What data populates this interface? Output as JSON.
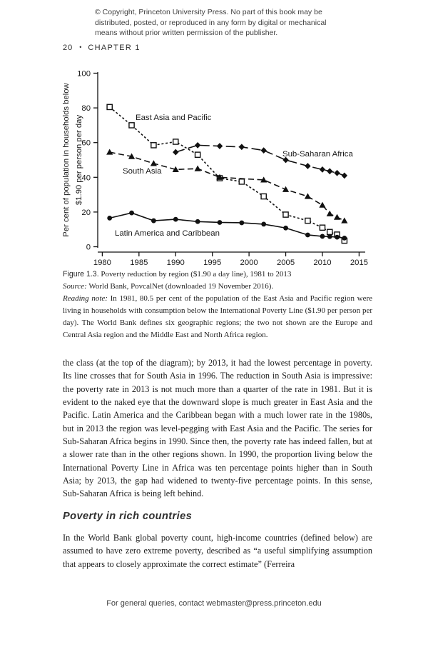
{
  "page": {
    "copyright_lines": [
      "© Copyright, Princeton University Press. No part of this book may be",
      "distributed, posted, or reproduced in any form by digital or mechanical",
      "means without prior written permission of the publisher."
    ],
    "running_head": {
      "page_number": "20",
      "separator": "•",
      "chapter": "CHAPTER 1"
    },
    "footer_text": "For general queries, contact webmaster@press.princeton.edu"
  },
  "figure": {
    "caption_prefix": "Figure 1.3.",
    "caption_title": "Poverty reduction by region ($1.90 a day line), 1981 to 2013",
    "source_prefix": "Source:",
    "source_text": "World Bank, PovcalNet (downloaded 19 November 2016).",
    "reading_note_prefix": "Reading note:",
    "reading_note_text": "In 1981, 80.5 per cent of the population of the East Asia and Pacific region were living in households with consumption below the International Poverty Line ($1.90 per person per day). The World Bank defines six geographic regions; the two not shown are the Europe and Central Asia region and the Middle East and North Africa region."
  },
  "body": {
    "paragraph1": "the class (at the top of the diagram); by 2013, it had the lowest percentage in poverty. Its line crosses that for South Asia in 1996. The reduction in South Asia is impressive: the poverty rate in 2013 is not much more than a quarter of the rate in 1981. But it is evident to the naked eye that the downward slope is much greater in East Asia and the Pacific. Latin America and the Caribbean began with a much lower rate in the 1980s, but in 2013 the region was level-pegging with East Asia and the Pacific. The series for Sub-Saharan Africa begins in 1990. Since then, the poverty rate has indeed fallen, but at a slower rate than in the other regions shown. In 1990, the proportion living below the International Poverty Line in Africa was ten percentage points higher than in South Asia; by 2013, the gap had widened to twenty-five percentage points. In this sense, Sub-Saharan Africa is being left behind.",
    "section_heading": "Poverty in rich countries",
    "paragraph2": "In the World Bank global poverty count, high-income countries (defined below) are assumed to have zero extreme poverty, described as “a useful simplifying assumption that appears to closely approximate the correct estimate” (Ferreira"
  },
  "chart_data": {
    "type": "line",
    "title": "",
    "xlabel": "",
    "ylabel_lines": [
      "Per cent of population in households below",
      "$1.90 per person per day"
    ],
    "xlim": [
      1980,
      2015
    ],
    "ylim": [
      0,
      100
    ],
    "x_ticks": [
      1980,
      1985,
      1990,
      1995,
      2000,
      2005,
      2010,
      2015
    ],
    "y_ticks": [
      0,
      20,
      40,
      60,
      80,
      100
    ],
    "grid": false,
    "legend_position": "inline-labels",
    "line_color": "#111111",
    "series": [
      {
        "name": "East Asia and Pacific",
        "marker": "square-open",
        "dash": "3,2.8",
        "x": [
          1981,
          1984,
          1987,
          1990,
          1993,
          1996,
          1999,
          2002,
          2005,
          2008,
          2010,
          2011,
          2012,
          2013
        ],
        "y": [
          80.5,
          70,
          58.5,
          60.5,
          53,
          39.5,
          37.5,
          29,
          18.5,
          15,
          11,
          8.5,
          7,
          3.5
        ]
      },
      {
        "name": "South Asia",
        "marker": "triangle-filled",
        "dash": "8,4.5",
        "x": [
          1981,
          1984,
          1987,
          1990,
          1993,
          1996,
          2002,
          2005,
          2008,
          2010,
          2011,
          2012,
          2013
        ],
        "y": [
          54.5,
          52,
          48,
          44.5,
          45,
          40,
          38.5,
          33,
          29,
          24,
          19,
          17,
          15
        ]
      },
      {
        "name": "Sub-Saharan Africa",
        "marker": "diamond-filled",
        "dash": "13,5",
        "x": [
          1990,
          1993,
          1996,
          1999,
          2002,
          2005,
          2008,
          2010,
          2011,
          2012,
          2013
        ],
        "y": [
          54.5,
          58.5,
          58,
          57.5,
          55.5,
          50,
          46.5,
          44.5,
          43.5,
          42.5,
          41
        ]
      },
      {
        "name": "Latin America and Caribbean",
        "marker": "circle-filled",
        "dash": "",
        "x": [
          1981,
          1984,
          1987,
          1990,
          1993,
          1996,
          1999,
          2002,
          2005,
          2008,
          2010,
          2011,
          2012,
          2013
        ],
        "y": [
          16.5,
          19.5,
          15,
          15.8,
          14.5,
          14,
          13.8,
          13,
          10.8,
          6.8,
          6,
          5.9,
          5.5,
          5
        ]
      }
    ]
  }
}
